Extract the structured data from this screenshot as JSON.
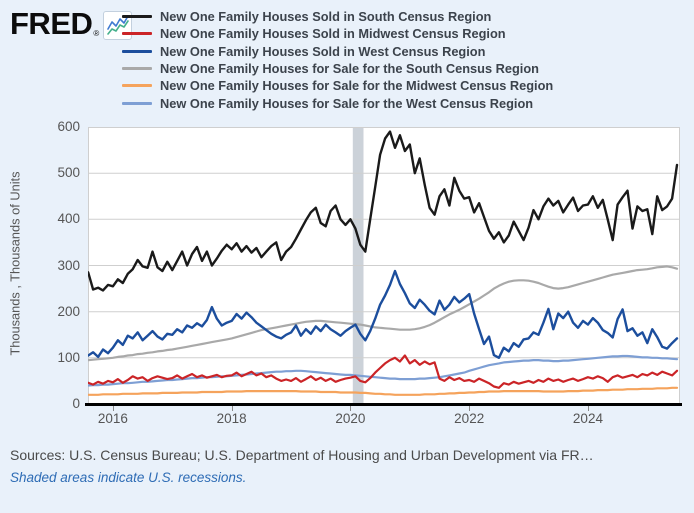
{
  "logo": {
    "text": "FRED",
    "registered": "®"
  },
  "footer": {
    "sources": "Sources: U.S. Census Bureau; U.S. Department of Housing and Urban Development via FR…",
    "note": "Shaded areas indicate U.S. recessions."
  },
  "chart_data": {
    "type": "line",
    "title": "",
    "ylabel": "Thousands , Thousands of Units",
    "ylim": [
      0,
      600
    ],
    "y_ticks": [
      0,
      100,
      200,
      300,
      400,
      500,
      600
    ],
    "x_ticks": [
      2016,
      2018,
      2020,
      2022,
      2024
    ],
    "x_axis_range": [
      2015.58,
      2025.55
    ],
    "x_start": 2015.583,
    "x_frequency": "monthly",
    "grid": true,
    "legend_position": "top",
    "plot_background": "#ffffff",
    "page_background": "#e9f1fa",
    "gridline_color": "#cfcfcf",
    "recession_color": "#ccd2d9",
    "recession_bands": [
      {
        "start": 2020.04,
        "end": 2020.22
      }
    ],
    "series": [
      {
        "name": "New One Family Houses Sold in South Census Region",
        "color": "#1a1a1a",
        "width": 2.4,
        "values": [
          285,
          248,
          252,
          246,
          258,
          255,
          270,
          262,
          282,
          292,
          312,
          298,
          295,
          330,
          296,
          288,
          308,
          290,
          310,
          330,
          300,
          325,
          340,
          310,
          330,
          300,
          315,
          332,
          345,
          335,
          348,
          330,
          342,
          328,
          338,
          318,
          330,
          342,
          350,
          312,
          330,
          340,
          358,
          378,
          398,
          415,
          425,
          392,
          385,
          418,
          430,
          400,
          388,
          400,
          380,
          345,
          330,
          400,
          470,
          540,
          575,
          590,
          555,
          582,
          548,
          562,
          500,
          532,
          475,
          425,
          410,
          450,
          465,
          430,
          490,
          462,
          445,
          448,
          415,
          435,
          405,
          375,
          358,
          372,
          350,
          365,
          395,
          375,
          355,
          382,
          420,
          400,
          428,
          445,
          430,
          440,
          415,
          432,
          447,
          418,
          430,
          432,
          450,
          425,
          442,
          400,
          355,
          432,
          448,
          462,
          380,
          428,
          418,
          422,
          368,
          450,
          420,
          428,
          445,
          518
        ]
      },
      {
        "name": "New One Family Houses Sold in Midwest Census Region",
        "color": "#cb2427",
        "width": 2.2,
        "values": [
          46,
          42,
          48,
          44,
          50,
          47,
          54,
          46,
          52,
          60,
          55,
          58,
          50,
          56,
          60,
          57,
          54,
          56,
          62,
          55,
          60,
          65,
          58,
          62,
          57,
          60,
          63,
          58,
          61,
          62,
          68,
          60,
          65,
          70,
          62,
          66,
          58,
          62,
          55,
          50,
          53,
          50,
          56,
          48,
          54,
          60,
          52,
          57,
          50,
          55,
          48,
          52,
          55,
          57,
          60,
          50,
          47,
          56,
          68,
          78,
          88,
          95,
          100,
          92,
          105,
          88,
          95,
          85,
          92,
          86,
          90,
          55,
          50,
          58,
          52,
          56,
          50,
          52,
          48,
          55,
          50,
          45,
          38,
          35,
          45,
          42,
          48,
          44,
          47,
          50,
          46,
          52,
          48,
          55,
          50,
          53,
          48,
          52,
          55,
          50,
          54,
          58,
          55,
          60,
          56,
          48,
          58,
          62,
          57,
          60,
          63,
          58,
          65,
          62,
          68,
          63,
          70,
          66,
          62,
          72
        ]
      },
      {
        "name": "New One Family Houses Sold in West Census Region",
        "color": "#1c4e9d",
        "width": 2.4,
        "values": [
          105,
          112,
          102,
          118,
          110,
          122,
          138,
          128,
          148,
          142,
          155,
          138,
          148,
          158,
          146,
          140,
          152,
          150,
          162,
          155,
          170,
          165,
          175,
          168,
          182,
          210,
          185,
          170,
          176,
          180,
          195,
          185,
          198,
          188,
          176,
          168,
          160,
          152,
          146,
          142,
          150,
          155,
          170,
          148,
          162,
          152,
          168,
          158,
          172,
          162,
          155,
          148,
          158,
          165,
          172,
          152,
          138,
          158,
          185,
          215,
          235,
          258,
          288,
          260,
          240,
          218,
          208,
          226,
          215,
          202,
          194,
          224,
          204,
          215,
          232,
          220,
          228,
          238,
          196,
          162,
          130,
          146,
          106,
          100,
          122,
          114,
          132,
          124,
          140,
          142,
          155,
          150,
          176,
          206,
          162,
          196,
          186,
          200,
          176,
          165,
          180,
          172,
          186,
          176,
          160,
          154,
          144,
          184,
          205,
          158,
          164,
          148,
          155,
          132,
          162,
          145,
          124,
          120,
          132,
          142
        ]
      },
      {
        "name": "New One Family Houses for Sale for the South Census Region",
        "color": "#a9a9a9",
        "width": 2.2,
        "values": [
          95,
          96,
          97,
          98,
          99,
          100,
          102,
          103,
          105,
          106,
          108,
          109,
          111,
          112,
          114,
          115,
          117,
          118,
          120,
          122,
          124,
          126,
          128,
          130,
          132,
          134,
          136,
          138,
          140,
          142,
          145,
          148,
          151,
          154,
          157,
          160,
          162,
          164,
          166,
          168,
          170,
          172,
          174,
          176,
          178,
          179,
          180,
          180,
          179,
          178,
          177,
          176,
          175,
          174,
          173,
          172,
          170,
          168,
          166,
          165,
          164,
          163,
          162,
          161,
          161,
          161,
          162,
          164,
          167,
          171,
          176,
          182,
          188,
          194,
          199,
          204,
          210,
          216,
          222,
          228,
          235,
          242,
          250,
          256,
          261,
          265,
          267,
          268,
          268,
          267,
          265,
          262,
          258,
          254,
          251,
          250,
          251,
          253,
          256,
          259,
          262,
          265,
          268,
          271,
          274,
          277,
          280,
          282,
          284,
          286,
          288,
          290,
          291,
          292,
          294,
          296,
          297,
          298,
          296,
          293
        ]
      },
      {
        "name": "New One Family Houses for Sale for the Midwest Census Region",
        "color": "#f5a35c",
        "width": 2.2,
        "values": [
          20,
          20,
          20,
          21,
          21,
          21,
          21,
          22,
          22,
          22,
          22,
          23,
          23,
          23,
          23,
          24,
          24,
          24,
          24,
          25,
          25,
          25,
          25,
          26,
          26,
          26,
          26,
          26,
          27,
          27,
          27,
          27,
          28,
          28,
          28,
          28,
          28,
          28,
          28,
          28,
          28,
          28,
          28,
          27,
          27,
          27,
          27,
          26,
          26,
          26,
          26,
          25,
          25,
          25,
          25,
          24,
          24,
          23,
          22,
          22,
          21,
          21,
          20,
          20,
          20,
          20,
          20,
          20,
          21,
          21,
          21,
          22,
          22,
          23,
          23,
          24,
          24,
          25,
          25,
          26,
          26,
          27,
          27,
          27,
          28,
          28,
          28,
          28,
          28,
          28,
          28,
          28,
          27,
          27,
          27,
          27,
          27,
          28,
          28,
          28,
          29,
          29,
          29,
          30,
          30,
          30,
          31,
          31,
          31,
          32,
          32,
          32,
          33,
          33,
          33,
          34,
          34,
          34,
          35,
          35
        ]
      },
      {
        "name": "New One Family Houses for Sale for the West Census Region",
        "color": "#7e9fd4",
        "width": 2.2,
        "values": [
          40,
          41,
          41,
          42,
          42,
          43,
          44,
          45,
          45,
          46,
          47,
          48,
          48,
          49,
          50,
          51,
          52,
          52,
          53,
          54,
          55,
          56,
          56,
          57,
          58,
          58,
          59,
          60,
          60,
          61,
          62,
          63,
          64,
          65,
          66,
          67,
          68,
          69,
          70,
          70,
          71,
          71,
          72,
          72,
          71,
          70,
          69,
          68,
          67,
          66,
          65,
          64,
          63,
          63,
          62,
          61,
          60,
          59,
          58,
          57,
          56,
          55,
          55,
          54,
          54,
          54,
          54,
          55,
          55,
          56,
          57,
          58,
          60,
          62,
          64,
          66,
          68,
          72,
          75,
          78,
          81,
          84,
          86,
          88,
          90,
          91,
          92,
          93,
          94,
          94,
          95,
          95,
          94,
          94,
          93,
          93,
          94,
          94,
          95,
          96,
          97,
          98,
          99,
          100,
          101,
          102,
          103,
          103,
          104,
          104,
          103,
          102,
          101,
          101,
          100,
          100,
          99,
          99,
          98,
          97
        ]
      }
    ]
  }
}
